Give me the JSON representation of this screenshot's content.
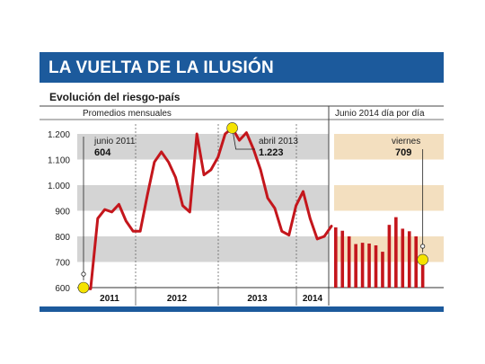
{
  "header": {
    "title": "LA VUELTA DE LA ILUSIÓN",
    "subtitle": "Evolución del riesgo-país"
  },
  "colors": {
    "accent_blue": "#1c5a9c",
    "line_red": "#c4161c",
    "band_gray": "#d4d4d4",
    "band_beige": "#f3dfbf",
    "highlight_yellow": "#f5e300"
  },
  "chart_data": [
    {
      "type": "line",
      "panel_label": "Promedios mensuales",
      "ylim": [
        600,
        1200
      ],
      "yticks": [
        600,
        700,
        800,
        900,
        1000,
        1100,
        1200
      ],
      "ytick_labels": [
        "600",
        "700",
        "800",
        "900",
        "1.000",
        "1.100",
        "1.200"
      ],
      "year_labels": [
        "2011",
        "2012",
        "2013",
        "2014"
      ],
      "series": [
        {
          "values": [
            600,
            595,
            870,
            905,
            895,
            925,
            860,
            820,
            820,
            960,
            1090,
            1130,
            1090,
            1030,
            920,
            895,
            1200,
            1040,
            1060,
            1110,
            1200,
            1223,
            1175,
            1205,
            1140,
            1060,
            950,
            910,
            820,
            805,
            920,
            975,
            870,
            790,
            800,
            840
          ]
        }
      ],
      "annotations": [
        {
          "label": "junio 2011",
          "value": "604"
        },
        {
          "label": "abril 2013",
          "value": "1.223"
        }
      ],
      "grid": "alternating horizontal bands"
    },
    {
      "type": "bar",
      "panel_label": "Junio 2014 día por día",
      "values": [
        835,
        822,
        800,
        770,
        775,
        772,
        765,
        740,
        845,
        875,
        830,
        820,
        800,
        709
      ],
      "annotation": {
        "label": "viernes",
        "value": "709"
      }
    }
  ]
}
